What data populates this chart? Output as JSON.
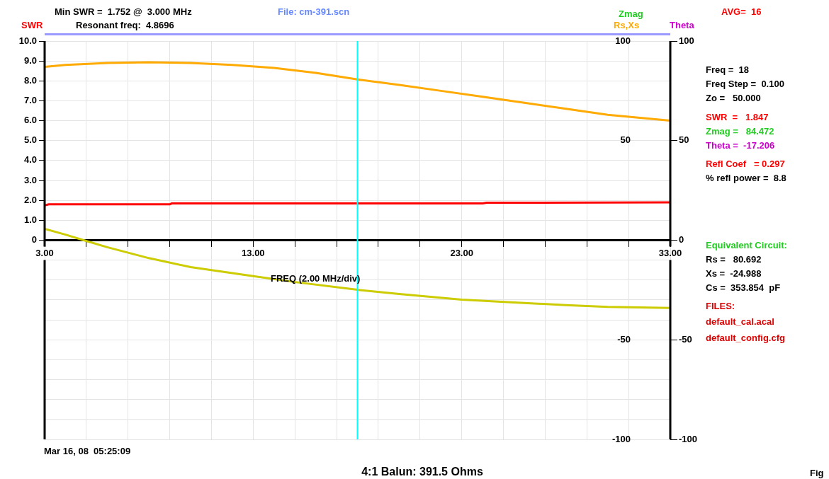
{
  "chart_data": {
    "type": "line",
    "xlabel": "FREQ (2.00 MHz/div)",
    "ylabel": "SWR",
    "y2label": "Rs,Xs",
    "y3label": "Theta",
    "xlim": [
      3,
      33
    ],
    "xticks": [
      {
        "value": 3,
        "label": "3.00"
      },
      {
        "value": 5,
        "label": null
      },
      {
        "value": 7,
        "label": null
      },
      {
        "value": 9,
        "label": null
      },
      {
        "value": 11,
        "label": null
      },
      {
        "value": 13,
        "label": "13.00"
      },
      {
        "value": 15,
        "label": null
      },
      {
        "value": 17,
        "label": null
      },
      {
        "value": 19,
        "label": null
      },
      {
        "value": 21,
        "label": null
      },
      {
        "value": 23,
        "label": "23.00"
      },
      {
        "value": 25,
        "label": null
      },
      {
        "value": 27,
        "label": null
      },
      {
        "value": 29,
        "label": null
      },
      {
        "value": 31,
        "label": null
      },
      {
        "value": 33,
        "label": "33.00"
      }
    ],
    "ylim": [
      -10,
      10
    ],
    "yticks": [
      0,
      {
        "value": 1,
        "label": "1.0"
      },
      {
        "value": 2,
        "label": "2.0"
      },
      {
        "value": 3,
        "label": "3.0"
      },
      {
        "value": 4,
        "label": "4.0"
      },
      {
        "value": 5,
        "label": "5.0"
      },
      {
        "value": 6,
        "label": "6.0"
      },
      {
        "value": 7,
        "label": "7.0"
      },
      {
        "value": 8,
        "label": "8.0"
      },
      {
        "value": 9,
        "label": "9.0"
      },
      {
        "value": 10,
        "label": "10.0"
      }
    ],
    "y2lim": [
      -100,
      100
    ],
    "y2ticks": [
      100,
      {
        "value": 90,
        "label": null
      },
      {
        "value": 80,
        "label": null
      },
      {
        "value": 70,
        "label": null
      },
      {
        "value": 60,
        "label": null
      },
      50,
      {
        "value": 40,
        "label": null
      },
      {
        "value": 30,
        "label": null
      },
      {
        "value": 20,
        "label": null
      },
      {
        "value": 10,
        "label": null
      },
      {
        "value": 0,
        "label": null
      },
      {
        "value": -10,
        "label": null
      },
      {
        "value": -20,
        "label": null
      },
      {
        "value": -30,
        "label": null
      },
      {
        "value": -40,
        "label": null
      },
      -50,
      {
        "value": -60,
        "label": null
      },
      {
        "value": -70,
        "label": null
      },
      {
        "value": -80,
        "label": null
      },
      {
        "value": -90,
        "label": null
      },
      -100
    ],
    "y3lim": [
      -100,
      100
    ],
    "y3ticks": [
      100,
      50,
      0,
      -50,
      -100
    ],
    "grid": true,
    "legend": false,
    "marker": "none",
    "line_style": "solid",
    "series": [
      {
        "color": "#ff0000",
        "x": [
          3,
          3.2,
          9,
          9.1,
          24,
          24.2,
          33
        ],
        "values": [
          1.75,
          1.8,
          1.8,
          1.85,
          1.85,
          1.88,
          1.9
        ]
      },
      {
        "color": "#ffaa00",
        "axis": "y2",
        "x": [
          3,
          4,
          6,
          8,
          10,
          12,
          14,
          16,
          18,
          20,
          22,
          24,
          26,
          28,
          30,
          32,
          33
        ],
        "values": [
          87,
          88,
          89,
          89.3,
          89,
          88,
          86.5,
          84,
          80.7,
          78,
          75,
          72,
          69,
          66,
          63,
          61,
          60
        ]
      },
      {
        "color": "#cccc00",
        "axis": "y2",
        "x": [
          3,
          4,
          4.87,
          6,
          8,
          10,
          13,
          15,
          18,
          20,
          23,
          26,
          28,
          30,
          33
        ],
        "values": [
          5.7,
          2.8,
          0,
          -3.5,
          -9,
          -13.5,
          -18,
          -21,
          -24.9,
          -27,
          -29.8,
          -31.5,
          -32.6,
          -33.5,
          -34
        ]
      }
    ],
    "ref_lines": [
      {
        "axis": "x",
        "value": 18,
        "color": "#00ffff"
      }
    ],
    "annotations": [
      "Min SWR =  1.752 @  3.000 MHz",
      "File: cm-391.scn",
      "Resonant freq:  4.8696",
      "Zmag",
      "AVG=  16",
      "Freq =  18",
      "Freq Step =  0.100",
      "Zo =   50.000",
      "SWR  =   1.847",
      "Zmag =   84.472",
      "Theta =  -17.206",
      "Refl Coef   = 0.297",
      "% refl power =  8.8",
      "Equivalent Circuit:",
      "Rs =   80.692",
      "Xs =  -24.988",
      "Cs =  353.854  pF",
      "FILES:",
      "default_cal.acal",
      "default_config.cfg",
      "Mar 16, 08  05:25:09",
      "4:1 Balun: 391.5 Ohms",
      "Fig"
    ]
  }
}
